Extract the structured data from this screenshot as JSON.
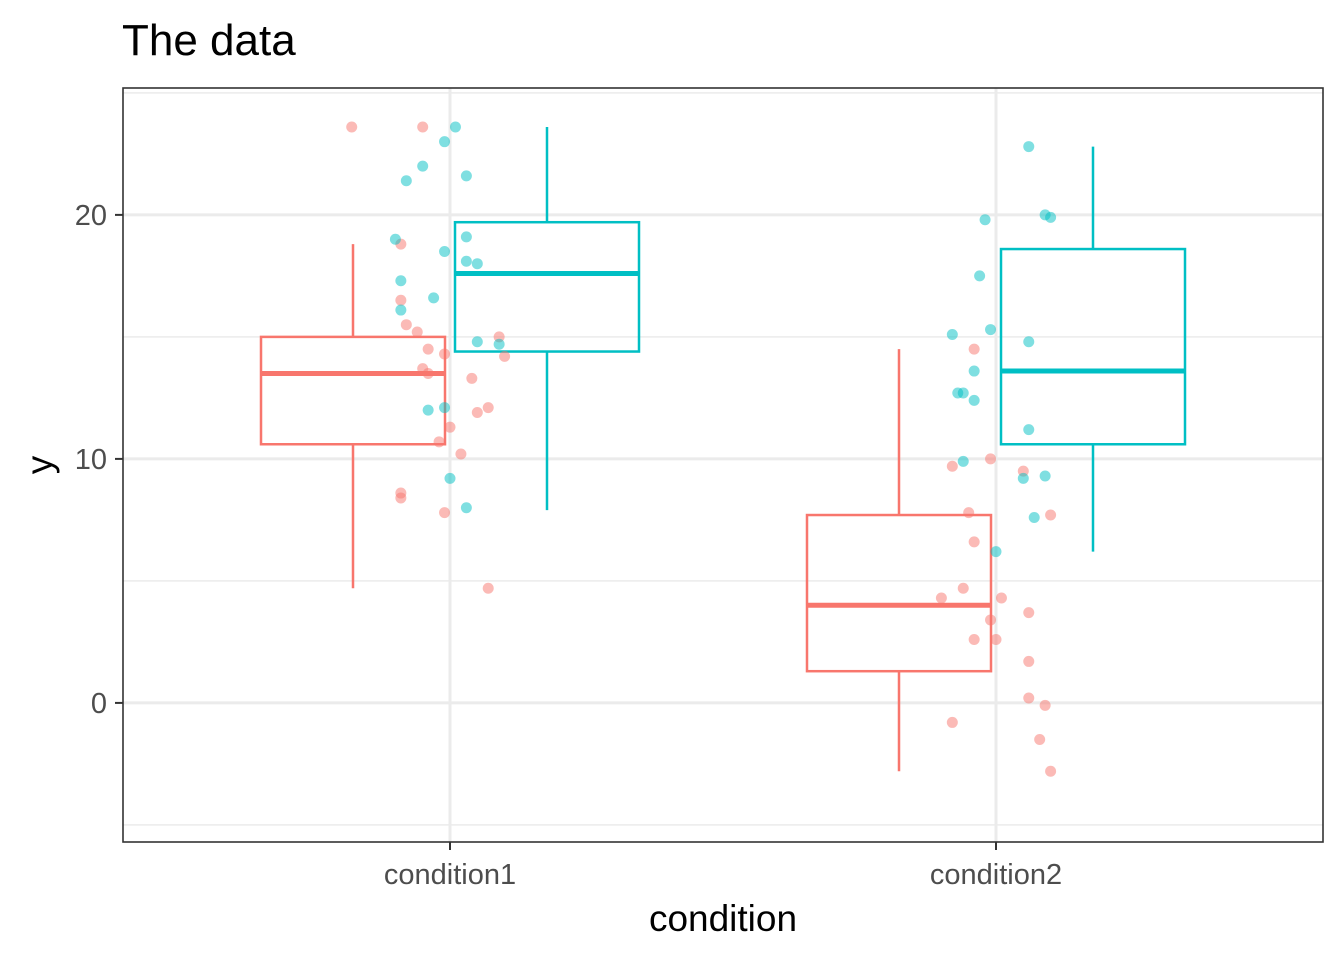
{
  "chart_data": {
    "type": "box",
    "title": "The data",
    "xlabel": "condition",
    "ylabel": "y",
    "categories": [
      "condition1",
      "condition2"
    ],
    "ylim": [
      -5.7,
      25.2
    ],
    "yticks": [
      0,
      10,
      20
    ],
    "grid": true,
    "legend": "none",
    "colors": {
      "group_a": "#F8766D",
      "group_b": "#00BFC4",
      "grid": "#EBEBEB",
      "border": "#333333"
    },
    "boxes": [
      {
        "category": "condition1",
        "group": "a",
        "min": 4.7,
        "q1": 10.6,
        "median": 13.5,
        "q3": 15.0,
        "max": 18.8
      },
      {
        "category": "condition1",
        "group": "b",
        "min": 7.9,
        "q1": 14.4,
        "median": 17.6,
        "q3": 19.7,
        "max": 23.6
      },
      {
        "category": "condition2",
        "group": "a",
        "min": -2.8,
        "q1": 1.3,
        "median": 4.0,
        "q3": 7.7,
        "max": 14.5
      },
      {
        "category": "condition2",
        "group": "b",
        "min": 6.2,
        "q1": 10.6,
        "median": 13.6,
        "q3": 18.6,
        "max": 22.8
      }
    ],
    "points": [
      {
        "category": "condition1",
        "group": "a",
        "jitter": -0.18,
        "y": 23.6
      },
      {
        "category": "condition1",
        "group": "a",
        "jitter": -0.05,
        "y": 23.6
      },
      {
        "category": "condition1",
        "group": "a",
        "jitter": -0.09,
        "y": 18.8
      },
      {
        "category": "condition1",
        "group": "a",
        "jitter": -0.09,
        "y": 16.5
      },
      {
        "category": "condition1",
        "group": "a",
        "jitter": -0.08,
        "y": 15.5
      },
      {
        "category": "condition1",
        "group": "a",
        "jitter": -0.06,
        "y": 15.2
      },
      {
        "category": "condition1",
        "group": "a",
        "jitter": -0.04,
        "y": 14.5
      },
      {
        "category": "condition1",
        "group": "a",
        "jitter": -0.01,
        "y": 14.3
      },
      {
        "category": "condition1",
        "group": "a",
        "jitter": -0.05,
        "y": 13.7
      },
      {
        "category": "condition1",
        "group": "a",
        "jitter": -0.04,
        "y": 13.5
      },
      {
        "category": "condition1",
        "group": "a",
        "jitter": 0.04,
        "y": 13.3
      },
      {
        "category": "condition1",
        "group": "a",
        "jitter": 0.07,
        "y": 12.1
      },
      {
        "category": "condition1",
        "group": "a",
        "jitter": 0.05,
        "y": 11.9
      },
      {
        "category": "condition1",
        "group": "a",
        "jitter": 0.0,
        "y": 11.3
      },
      {
        "category": "condition1",
        "group": "a",
        "jitter": -0.02,
        "y": 10.7
      },
      {
        "category": "condition1",
        "group": "a",
        "jitter": 0.02,
        "y": 10.2
      },
      {
        "category": "condition1",
        "group": "a",
        "jitter": -0.09,
        "y": 8.6
      },
      {
        "category": "condition1",
        "group": "a",
        "jitter": -0.09,
        "y": 8.4
      },
      {
        "category": "condition1",
        "group": "a",
        "jitter": -0.01,
        "y": 7.8
      },
      {
        "category": "condition1",
        "group": "a",
        "jitter": 0.07,
        "y": 4.7
      },
      {
        "category": "condition1",
        "group": "a",
        "jitter": 0.09,
        "y": 15.0
      },
      {
        "category": "condition1",
        "group": "a",
        "jitter": 0.1,
        "y": 14.2
      },
      {
        "category": "condition1",
        "group": "b",
        "jitter": 0.01,
        "y": 23.6
      },
      {
        "category": "condition1",
        "group": "b",
        "jitter": -0.01,
        "y": 23.0
      },
      {
        "category": "condition1",
        "group": "b",
        "jitter": -0.05,
        "y": 22.0
      },
      {
        "category": "condition1",
        "group": "b",
        "jitter": 0.03,
        "y": 21.6
      },
      {
        "category": "condition1",
        "group": "b",
        "jitter": -0.08,
        "y": 21.4
      },
      {
        "category": "condition1",
        "group": "b",
        "jitter": 0.03,
        "y": 19.1
      },
      {
        "category": "condition1",
        "group": "b",
        "jitter": -0.1,
        "y": 19.0
      },
      {
        "category": "condition1",
        "group": "b",
        "jitter": -0.01,
        "y": 18.5
      },
      {
        "category": "condition1",
        "group": "b",
        "jitter": 0.03,
        "y": 18.1
      },
      {
        "category": "condition1",
        "group": "b",
        "jitter": 0.05,
        "y": 18.0
      },
      {
        "category": "condition1",
        "group": "b",
        "jitter": -0.09,
        "y": 17.3
      },
      {
        "category": "condition1",
        "group": "b",
        "jitter": -0.03,
        "y": 16.6
      },
      {
        "category": "condition1",
        "group": "b",
        "jitter": -0.09,
        "y": 16.1
      },
      {
        "category": "condition1",
        "group": "b",
        "jitter": 0.05,
        "y": 14.8
      },
      {
        "category": "condition1",
        "group": "b",
        "jitter": 0.09,
        "y": 14.7
      },
      {
        "category": "condition1",
        "group": "b",
        "jitter": -0.04,
        "y": 12.0
      },
      {
        "category": "condition1",
        "group": "b",
        "jitter": -0.01,
        "y": 12.1
      },
      {
        "category": "condition1",
        "group": "b",
        "jitter": 0.0,
        "y": 9.2
      },
      {
        "category": "condition1",
        "group": "b",
        "jitter": 0.03,
        "y": 8.0
      },
      {
        "category": "condition2",
        "group": "a",
        "jitter": -0.08,
        "y": 9.7
      },
      {
        "category": "condition2",
        "group": "a",
        "jitter": -0.05,
        "y": 7.8
      },
      {
        "category": "condition2",
        "group": "a",
        "jitter": -0.04,
        "y": 14.5
      },
      {
        "category": "condition2",
        "group": "a",
        "jitter": -0.01,
        "y": 10.0
      },
      {
        "category": "condition2",
        "group": "a",
        "jitter": 0.05,
        "y": 9.5
      },
      {
        "category": "condition2",
        "group": "a",
        "jitter": 0.1,
        "y": 7.7
      },
      {
        "category": "condition2",
        "group": "a",
        "jitter": -0.04,
        "y": 6.6
      },
      {
        "category": "condition2",
        "group": "a",
        "jitter": -0.06,
        "y": 4.7
      },
      {
        "category": "condition2",
        "group": "a",
        "jitter": -0.1,
        "y": 4.3
      },
      {
        "category": "condition2",
        "group": "a",
        "jitter": 0.01,
        "y": 4.3
      },
      {
        "category": "condition2",
        "group": "a",
        "jitter": 0.06,
        "y": 3.7
      },
      {
        "category": "condition2",
        "group": "a",
        "jitter": -0.01,
        "y": 3.4
      },
      {
        "category": "condition2",
        "group": "a",
        "jitter": 0.0,
        "y": 2.6
      },
      {
        "category": "condition2",
        "group": "a",
        "jitter": -0.04,
        "y": 2.6
      },
      {
        "category": "condition2",
        "group": "a",
        "jitter": 0.06,
        "y": 1.7
      },
      {
        "category": "condition2",
        "group": "a",
        "jitter": 0.06,
        "y": 0.2
      },
      {
        "category": "condition2",
        "group": "a",
        "jitter": 0.09,
        "y": -0.1
      },
      {
        "category": "condition2",
        "group": "a",
        "jitter": -0.08,
        "y": -0.8
      },
      {
        "category": "condition2",
        "group": "a",
        "jitter": 0.08,
        "y": -1.5
      },
      {
        "category": "condition2",
        "group": "a",
        "jitter": 0.1,
        "y": -2.8
      },
      {
        "category": "condition2",
        "group": "b",
        "jitter": 0.06,
        "y": 22.8
      },
      {
        "category": "condition2",
        "group": "b",
        "jitter": 0.09,
        "y": 20.0
      },
      {
        "category": "condition2",
        "group": "b",
        "jitter": 0.1,
        "y": 19.9
      },
      {
        "category": "condition2",
        "group": "b",
        "jitter": -0.02,
        "y": 19.8
      },
      {
        "category": "condition2",
        "group": "b",
        "jitter": -0.03,
        "y": 17.5
      },
      {
        "category": "condition2",
        "group": "b",
        "jitter": -0.01,
        "y": 15.3
      },
      {
        "category": "condition2",
        "group": "b",
        "jitter": -0.08,
        "y": 15.1
      },
      {
        "category": "condition2",
        "group": "b",
        "jitter": 0.06,
        "y": 14.8
      },
      {
        "category": "condition2",
        "group": "b",
        "jitter": -0.04,
        "y": 13.6
      },
      {
        "category": "condition2",
        "group": "b",
        "jitter": -0.07,
        "y": 12.7
      },
      {
        "category": "condition2",
        "group": "b",
        "jitter": -0.06,
        "y": 12.7
      },
      {
        "category": "condition2",
        "group": "b",
        "jitter": -0.04,
        "y": 12.4
      },
      {
        "category": "condition2",
        "group": "b",
        "jitter": 0.06,
        "y": 11.2
      },
      {
        "category": "condition2",
        "group": "b",
        "jitter": -0.06,
        "y": 9.9
      },
      {
        "category": "condition2",
        "group": "b",
        "jitter": 0.05,
        "y": 9.2
      },
      {
        "category": "condition2",
        "group": "b",
        "jitter": 0.09,
        "y": 9.3
      },
      {
        "category": "condition2",
        "group": "b",
        "jitter": 0.07,
        "y": 7.6
      },
      {
        "category": "condition2",
        "group": "b",
        "jitter": 0.0,
        "y": 6.2
      }
    ]
  }
}
